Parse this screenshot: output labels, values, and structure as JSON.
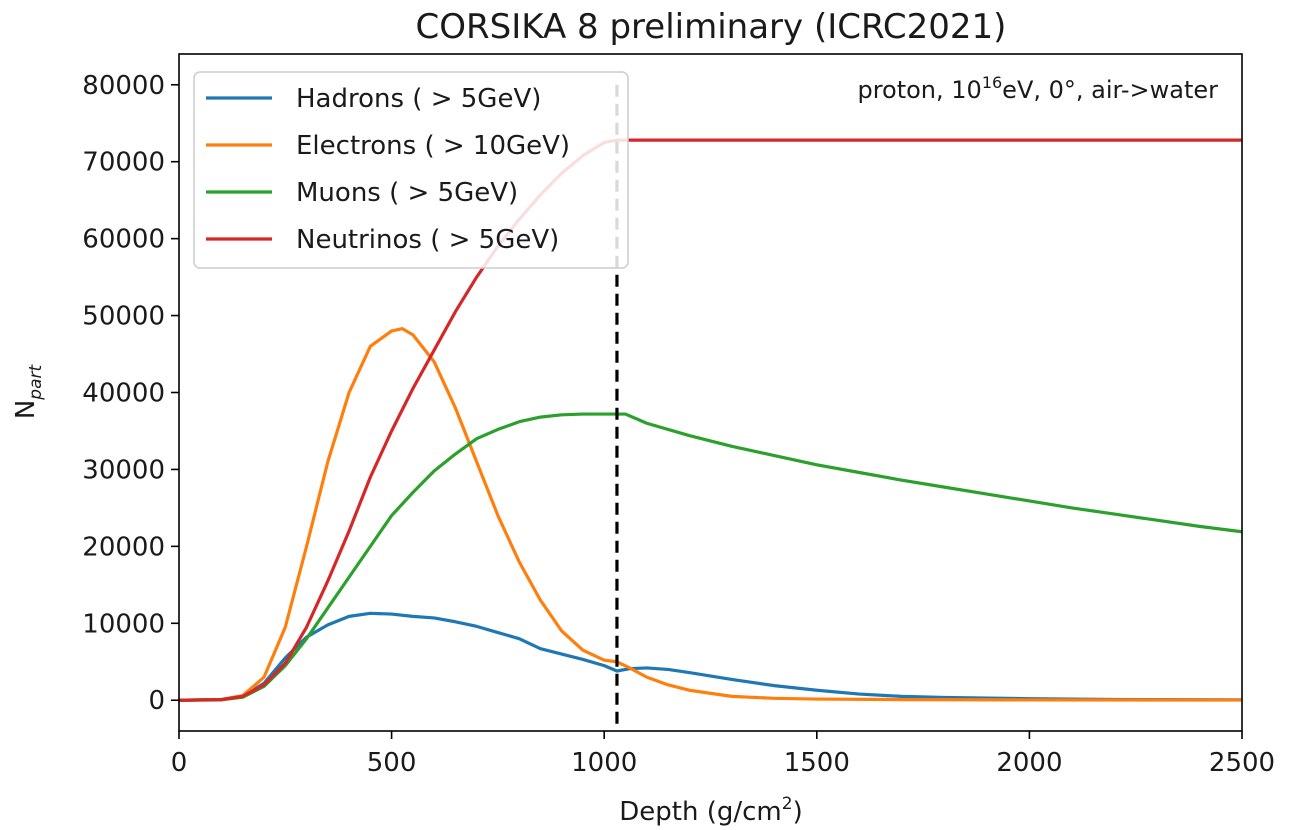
{
  "chart_data": {
    "type": "line",
    "title": "CORSIKA 8 preliminary (ICRC2021)",
    "xlabel": "Depth (g/cm²)",
    "ylabel": "N_part",
    "xlim": [
      0,
      2500
    ],
    "ylim": [
      -4000,
      84000
    ],
    "xticks": [
      0,
      500,
      1000,
      1500,
      2000,
      2500
    ],
    "yticks": [
      0,
      10000,
      20000,
      30000,
      40000,
      50000,
      60000,
      70000,
      80000
    ],
    "grid": false,
    "legend_position": "top-left",
    "annotation": "proton, 10¹⁶eV, 0°, air->water",
    "vline": {
      "x": 1030,
      "style": "dashed",
      "color": "#000000",
      "ymax": 80000
    },
    "series": [
      {
        "name": "Hadrons ( > 5GeV)",
        "color": "#1f77b4",
        "x": [
          0,
          100,
          150,
          200,
          250,
          300,
          350,
          400,
          450,
          500,
          550,
          600,
          650,
          700,
          750,
          800,
          850,
          900,
          950,
          1000,
          1030,
          1060,
          1100,
          1150,
          1200,
          1300,
          1400,
          1500,
          1600,
          1700,
          1800,
          2000,
          2200,
          2500
        ],
        "values": [
          0,
          100,
          500,
          2200,
          5500,
          8200,
          9800,
          10900,
          11300,
          11200,
          10900,
          10700,
          10200,
          9600,
          8800,
          8000,
          6700,
          6000,
          5300,
          4500,
          3800,
          4100,
          4200,
          4000,
          3600,
          2700,
          1900,
          1300,
          800,
          500,
          350,
          200,
          100,
          50
        ]
      },
      {
        "name": "Electrons ( > 10GeV)",
        "color": "#ff7f0e",
        "x": [
          0,
          100,
          150,
          200,
          250,
          300,
          350,
          400,
          450,
          500,
          525,
          550,
          600,
          650,
          700,
          750,
          800,
          850,
          900,
          950,
          1000,
          1030,
          1060,
          1100,
          1150,
          1200,
          1300,
          1400,
          1500,
          1700,
          2000,
          2500
        ],
        "values": [
          0,
          100,
          600,
          3000,
          9500,
          20000,
          31000,
          40000,
          46000,
          48000,
          48300,
          47500,
          44000,
          38000,
          31000,
          24000,
          18000,
          13000,
          9000,
          6500,
          5200,
          5000,
          4200,
          3000,
          2000,
          1300,
          500,
          250,
          150,
          80,
          40,
          20
        ]
      },
      {
        "name": "Muons ( > 5GeV)",
        "color": "#2ca02c",
        "x": [
          0,
          100,
          150,
          200,
          250,
          300,
          350,
          400,
          450,
          500,
          550,
          600,
          650,
          700,
          750,
          800,
          850,
          900,
          950,
          1000,
          1050,
          1100,
          1200,
          1300,
          1400,
          1500,
          1600,
          1700,
          1800,
          1900,
          2000,
          2100,
          2200,
          2300,
          2400,
          2500
        ],
        "values": [
          0,
          50,
          400,
          1800,
          4500,
          8000,
          12000,
          16000,
          20000,
          24000,
          27000,
          29800,
          32000,
          34000,
          35200,
          36200,
          36800,
          37100,
          37200,
          37200,
          37200,
          36000,
          34400,
          33000,
          31800,
          30600,
          29600,
          28600,
          27700,
          26800,
          25900,
          25000,
          24200,
          23400,
          22600,
          21900
        ]
      },
      {
        "name": "Neutrinos ( > 5GeV)",
        "color": "#d62728",
        "x": [
          0,
          100,
          150,
          200,
          250,
          300,
          350,
          400,
          450,
          500,
          550,
          600,
          650,
          700,
          750,
          800,
          850,
          900,
          950,
          1000,
          1030,
          2500
        ],
        "values": [
          0,
          80,
          500,
          2000,
          4800,
          9500,
          15500,
          22000,
          29000,
          35000,
          40500,
          45500,
          50500,
          55000,
          59000,
          62500,
          65700,
          68500,
          70800,
          72500,
          72800,
          72800
        ]
      }
    ]
  }
}
